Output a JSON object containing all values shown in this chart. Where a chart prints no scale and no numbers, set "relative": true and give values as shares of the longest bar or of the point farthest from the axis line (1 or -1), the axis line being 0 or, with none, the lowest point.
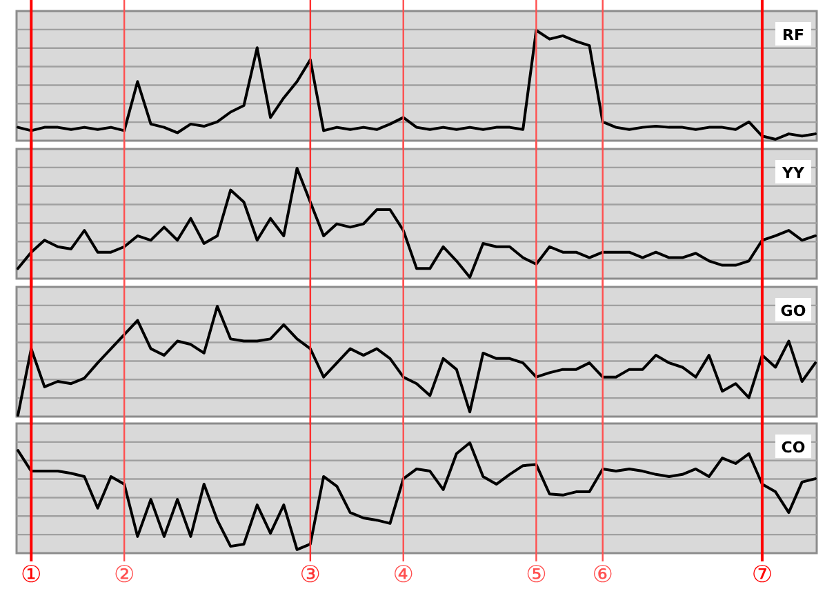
{
  "chart_data": [
    {
      "type": "line",
      "relative": true,
      "grid": "y",
      "tick_labels": false,
      "categories": [
        null,
        "①",
        null,
        null,
        null,
        null,
        null,
        null,
        "②",
        null,
        null,
        null,
        null,
        null,
        null,
        null,
        null,
        null,
        null,
        null,
        null,
        null,
        "③",
        null,
        null,
        null,
        null,
        null,
        null,
        "④",
        null,
        null,
        null,
        null,
        null,
        null,
        null,
        null,
        null,
        "⑤",
        null,
        null,
        null,
        null,
        "⑥",
        null,
        null,
        null,
        null,
        null,
        null,
        null,
        null,
        null,
        null,
        null,
        "⑦",
        null,
        null,
        null,
        null
      ],
      "series": [
        {
          "name": "RF",
          "color": "#000000",
          "values": [
            0.11,
            0.08,
            0.11,
            0.11,
            0.09,
            0.11,
            0.09,
            0.11,
            0.08,
            0.53,
            0.14,
            0.11,
            0.06,
            0.14,
            0.12,
            0.16,
            0.25,
            0.31,
            0.84,
            0.2,
            0.38,
            0.53,
            0.73,
            0.08,
            0.11,
            0.09,
            0.11,
            0.09,
            0.14,
            0.2,
            0.11,
            0.09,
            0.11,
            0.09,
            0.11,
            0.09,
            0.11,
            0.11,
            0.09,
            1.0,
            0.92,
            0.95,
            0.9,
            0.86,
            0.16,
            0.11,
            0.09,
            0.11,
            0.12,
            0.11,
            0.11,
            0.09,
            0.11,
            0.11,
            0.09,
            0.16,
            0.03,
            0,
            0.05,
            0.03,
            0.05
          ]
        }
      ],
      "ref_lines": [
        {
          "axis": "x",
          "value": "①",
          "color": "#ff0000"
        },
        {
          "axis": "x",
          "value": "②",
          "color": "#ff5050"
        },
        {
          "axis": "x",
          "value": "③",
          "color": "#ff3030"
        },
        {
          "axis": "x",
          "value": "④",
          "color": "#ff5050"
        },
        {
          "axis": "x",
          "value": "⑤",
          "color": "#ff5050"
        },
        {
          "axis": "x",
          "value": "⑥",
          "color": "#ff5050"
        },
        {
          "axis": "x",
          "value": "⑦",
          "color": "#ff0000"
        }
      ]
    },
    {
      "type": "line",
      "relative": true,
      "grid": "y",
      "tick_labels": false,
      "categories": [
        null,
        "①",
        null,
        null,
        null,
        null,
        null,
        null,
        "②",
        null,
        null,
        null,
        null,
        null,
        null,
        null,
        null,
        null,
        null,
        null,
        null,
        null,
        "③",
        null,
        null,
        null,
        null,
        null,
        null,
        "④",
        null,
        null,
        null,
        null,
        null,
        null,
        null,
        null,
        null,
        "⑤",
        null,
        null,
        null,
        null,
        "⑥",
        null,
        null,
        null,
        null,
        null,
        null,
        null,
        null,
        null,
        null,
        null,
        "⑦",
        null,
        null,
        null,
        null
      ],
      "series": [
        {
          "name": "YY",
          "color": "#000000",
          "values": [
            0.08,
            0.23,
            0.34,
            0.28,
            0.26,
            0.43,
            0.23,
            0.23,
            0.28,
            0.38,
            0.34,
            0.46,
            0.34,
            0.54,
            0.31,
            0.38,
            0.8,
            0.69,
            0.34,
            0.54,
            0.38,
            1.0,
            0.69,
            0.38,
            0.49,
            0.46,
            0.49,
            0.62,
            0.62,
            0.43,
            0.08,
            0.08,
            0.28,
            0.15,
            0,
            0.31,
            0.28,
            0.28,
            0.18,
            0.12,
            0.28,
            0.23,
            0.23,
            0.18,
            0.23,
            0.23,
            0.23,
            0.18,
            0.23,
            0.18,
            0.18,
            0.22,
            0.15,
            0.11,
            0.11,
            0.15,
            0.34,
            0.38,
            0.43,
            0.34,
            0.38
          ]
        }
      ],
      "ref_lines": [
        {
          "axis": "x",
          "value": "①",
          "color": "#ff0000"
        },
        {
          "axis": "x",
          "value": "②",
          "color": "#ff5050"
        },
        {
          "axis": "x",
          "value": "③",
          "color": "#ff3030"
        },
        {
          "axis": "x",
          "value": "④",
          "color": "#ff5050"
        },
        {
          "axis": "x",
          "value": "⑤",
          "color": "#ff5050"
        },
        {
          "axis": "x",
          "value": "⑥",
          "color": "#ff5050"
        },
        {
          "axis": "x",
          "value": "⑦",
          "color": "#ff0000"
        }
      ]
    },
    {
      "type": "line",
      "relative": true,
      "grid": "y",
      "tick_labels": false,
      "categories": [
        null,
        "①",
        null,
        null,
        null,
        null,
        null,
        null,
        "②",
        null,
        null,
        null,
        null,
        null,
        null,
        null,
        null,
        null,
        null,
        null,
        null,
        null,
        "③",
        null,
        null,
        null,
        null,
        null,
        null,
        "④",
        null,
        null,
        null,
        null,
        null,
        null,
        null,
        null,
        null,
        "⑤",
        null,
        null,
        null,
        null,
        "⑥",
        null,
        null,
        null,
        null,
        null,
        null,
        null,
        null,
        null,
        null,
        null,
        "⑦",
        null,
        null,
        null,
        null
      ],
      "series": [
        {
          "name": "GO",
          "color": "#000000",
          "values": [
            0,
            0.61,
            0.26,
            0.31,
            0.29,
            0.34,
            0.48,
            0.61,
            0.74,
            0.87,
            0.61,
            0.55,
            0.68,
            0.65,
            0.57,
            1.0,
            0.7,
            0.68,
            0.68,
            0.7,
            0.83,
            0.7,
            0.61,
            0.35,
            0.48,
            0.61,
            0.55,
            0.61,
            0.52,
            0.35,
            0.29,
            0.18,
            0.52,
            0.42,
            0.03,
            0.57,
            0.52,
            0.52,
            0.48,
            0.35,
            0.39,
            0.42,
            0.42,
            0.48,
            0.35,
            0.35,
            0.42,
            0.42,
            0.55,
            0.48,
            0.44,
            0.35,
            0.55,
            0.22,
            0.29,
            0.16,
            0.55,
            0.44,
            0.68,
            0.31,
            0.48
          ]
        }
      ],
      "ref_lines": [
        {
          "axis": "x",
          "value": "①",
          "color": "#ff0000"
        },
        {
          "axis": "x",
          "value": "②",
          "color": "#ff5050"
        },
        {
          "axis": "x",
          "value": "③",
          "color": "#ff3030"
        },
        {
          "axis": "x",
          "value": "④",
          "color": "#ff5050"
        },
        {
          "axis": "x",
          "value": "⑤",
          "color": "#ff5050"
        },
        {
          "axis": "x",
          "value": "⑥",
          "color": "#ff5050"
        },
        {
          "axis": "x",
          "value": "⑦",
          "color": "#ff0000"
        }
      ]
    },
    {
      "type": "line",
      "relative": true,
      "grid": "y",
      "categories": [
        null,
        "①",
        null,
        null,
        null,
        null,
        null,
        null,
        "②",
        null,
        null,
        null,
        null,
        null,
        null,
        null,
        null,
        null,
        null,
        null,
        null,
        null,
        "③",
        null,
        null,
        null,
        null,
        null,
        null,
        "④",
        null,
        null,
        null,
        null,
        null,
        null,
        null,
        null,
        null,
        "⑤",
        null,
        null,
        null,
        null,
        "⑥",
        null,
        null,
        null,
        null,
        null,
        null,
        null,
        null,
        null,
        null,
        null,
        "⑦",
        null,
        null,
        null,
        null
      ],
      "series": [
        {
          "name": "CO",
          "color": "#000000",
          "values": [
            0.93,
            0.74,
            0.74,
            0.74,
            0.72,
            0.69,
            0.4,
            0.69,
            0.62,
            0.14,
            0.48,
            0.14,
            0.48,
            0.14,
            0.62,
            0.29,
            0.05,
            0.07,
            0.43,
            0.17,
            0.43,
            0.02,
            0.07,
            0.69,
            0.6,
            0.36,
            0.31,
            0.29,
            0.26,
            0.67,
            0.76,
            0.74,
            0.57,
            0.9,
            1.0,
            0.69,
            0.62,
            0.71,
            0.79,
            0.8,
            0.53,
            0.52,
            0.55,
            0.55,
            0.76,
            0.74,
            0.76,
            0.74,
            0.71,
            0.69,
            0.71,
            0.76,
            0.69,
            0.86,
            0.81,
            0.9,
            0.62,
            0.55,
            0.36,
            0.64,
            0.67
          ]
        }
      ],
      "ref_lines": [
        {
          "axis": "x",
          "value": "①",
          "color": "#ff0000"
        },
        {
          "axis": "x",
          "value": "②",
          "color": "#ff5050"
        },
        {
          "axis": "x",
          "value": "③",
          "color": "#ff3030"
        },
        {
          "axis": "x",
          "value": "④",
          "color": "#ff5050"
        },
        {
          "axis": "x",
          "value": "⑤",
          "color": "#ff5050"
        },
        {
          "axis": "x",
          "value": "⑥",
          "color": "#ff5050"
        },
        {
          "axis": "x",
          "value": "⑦",
          "color": "#ff0000"
        }
      ]
    }
  ]
}
